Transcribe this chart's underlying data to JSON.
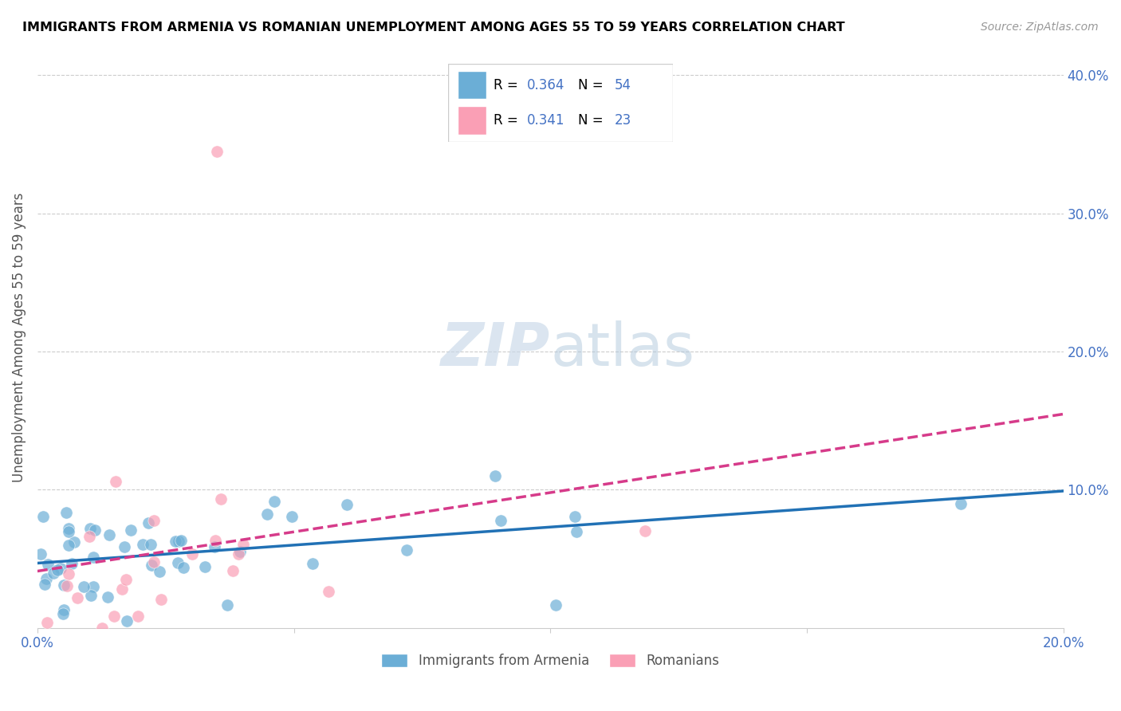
{
  "title": "IMMIGRANTS FROM ARMENIA VS ROMANIAN UNEMPLOYMENT AMONG AGES 55 TO 59 YEARS CORRELATION CHART",
  "source": "Source: ZipAtlas.com",
  "ylabel": "Unemployment Among Ages 55 to 59 years",
  "xlim": [
    0.0,
    0.2
  ],
  "ylim": [
    0.0,
    0.42
  ],
  "ytick_positions": [
    0.1,
    0.2,
    0.3,
    0.4
  ],
  "ytick_labels": [
    "10.0%",
    "20.0%",
    "30.0%",
    "40.0%"
  ],
  "legend_label1": "Immigrants from Armenia",
  "legend_label2": "Romanians",
  "blue_color": "#6baed6",
  "pink_color": "#fa9fb5",
  "blue_line_color": "#2171b5",
  "pink_line_color": "#d63b8a",
  "tick_color": "#4472c4",
  "r1": "0.364",
  "n1": "54",
  "r2": "0.341",
  "n2": "23"
}
